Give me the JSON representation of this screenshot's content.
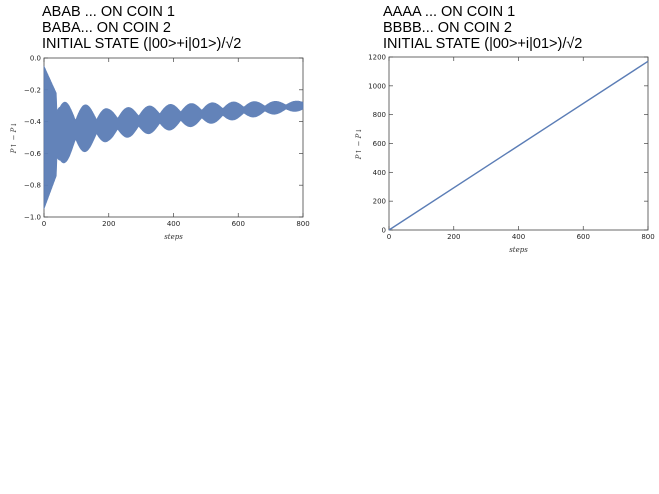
{
  "captions": {
    "left": [
      "ABAB ... ON COIN 1",
      "BABA... ON COIN 2",
      "INITIAL STATE (|00>+i|01>)/√2"
    ],
    "right": [
      "AAAA ... ON COIN 1",
      "BBBB... ON COIN 2",
      "INITIAL STATE (|00>+i|01>)/√2"
    ]
  },
  "chart_data": [
    {
      "type": "line",
      "title": "",
      "xlabel": "steps",
      "ylabel": "P↑ − P↓",
      "xlim": [
        0,
        800
      ],
      "ylim": [
        -1.0,
        0.0
      ],
      "xticks": [
        0,
        200,
        400,
        600,
        800
      ],
      "yticks": [
        -1.0,
        -0.8,
        -0.6,
        -0.4,
        -0.2,
        0.0
      ],
      "ytick_labels": [
        "−1.0",
        "−0.8",
        "−0.6",
        "−0.4",
        "−0.2",
        "0.0"
      ],
      "color": "#5b7db6",
      "series": [
        {
          "mean": [
            [
              0,
              -0.5
            ],
            [
              100,
              -0.45
            ],
            [
              200,
              -0.42
            ],
            [
              400,
              -0.37
            ],
            [
              600,
              -0.33
            ],
            [
              800,
              -0.3
            ]
          ],
          "envelope_amplitude": [
            [
              0,
              0.45
            ],
            [
              50,
              0.2
            ],
            [
              200,
              0.1
            ],
            [
              400,
              0.08
            ],
            [
              800,
              0.03
            ]
          ],
          "beat_period": 65
        }
      ]
    },
    {
      "type": "line",
      "title": "",
      "xlabel": "steps",
      "ylabel": "P↑ − P↓",
      "xlim": [
        0,
        800
      ],
      "ylim": [
        0,
        1200
      ],
      "xticks": [
        0,
        200,
        400,
        600,
        800
      ],
      "yticks": [
        0,
        200,
        400,
        600,
        800,
        1000,
        1200
      ],
      "color": "#5b7db6",
      "series": [
        {
          "x": [
            0,
            800
          ],
          "y": [
            0,
            1170
          ]
        }
      ]
    }
  ]
}
